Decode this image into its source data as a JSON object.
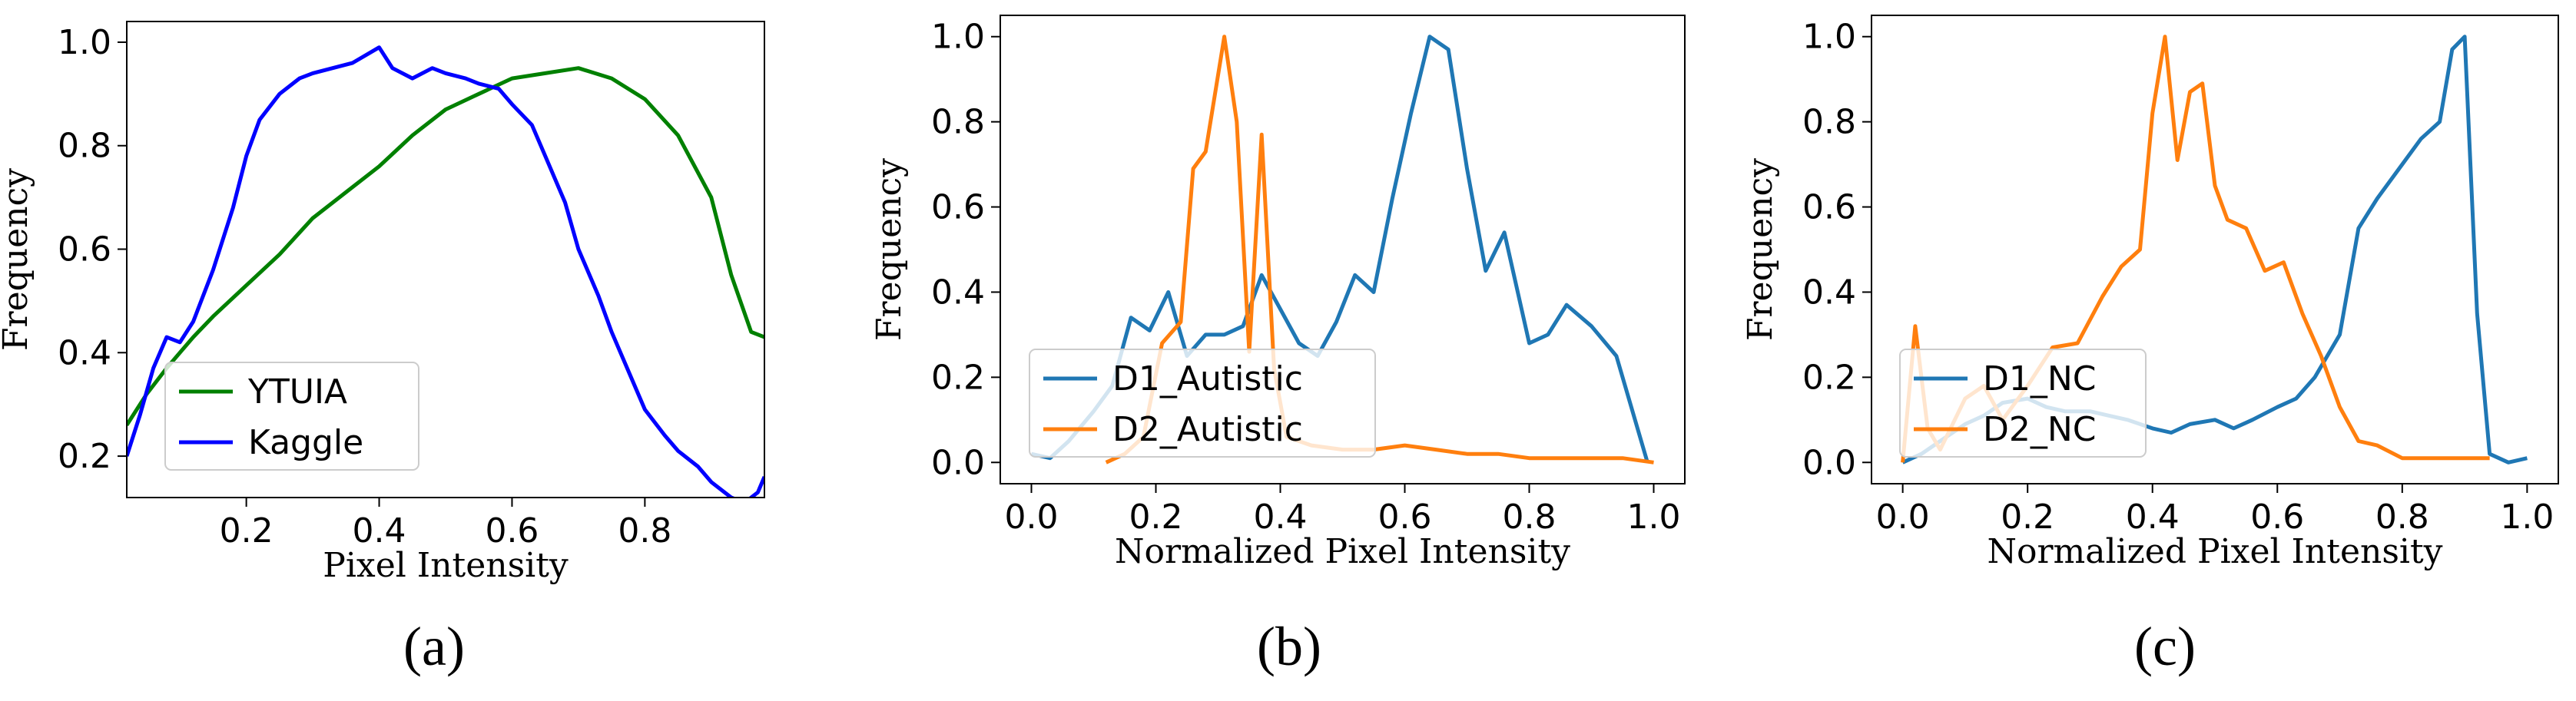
{
  "figure": {
    "captions": [
      "(a)",
      "(b)",
      "(c)"
    ]
  },
  "chart_data": [
    {
      "type": "line",
      "panel": "a",
      "title": "",
      "xlabel": "Pixel Intensity",
      "ylabel": "Frequency",
      "xlim": [
        0.02,
        0.98
      ],
      "ylim": [
        0.12,
        1.04
      ],
      "xticks": [
        0.2,
        0.4,
        0.6,
        0.8
      ],
      "xtick_labels": [
        "0.2",
        "0.4",
        "0.6",
        "0.8"
      ],
      "yticks": [
        0.2,
        0.4,
        0.6,
        0.8,
        1.0
      ],
      "ytick_labels": [
        "0.2",
        "0.4",
        "0.6",
        "0.8",
        "1.0"
      ],
      "legend_position": "lower-left",
      "series": [
        {
          "name": "YTUIA",
          "color": "#008000",
          "x": [
            0.02,
            0.05,
            0.08,
            0.1,
            0.12,
            0.15,
            0.2,
            0.25,
            0.3,
            0.35,
            0.4,
            0.45,
            0.5,
            0.55,
            0.6,
            0.65,
            0.7,
            0.75,
            0.8,
            0.85,
            0.9,
            0.93,
            0.96,
            0.98
          ],
          "values": [
            0.26,
            0.32,
            0.37,
            0.4,
            0.43,
            0.47,
            0.53,
            0.59,
            0.66,
            0.71,
            0.76,
            0.82,
            0.87,
            0.9,
            0.93,
            0.94,
            0.95,
            0.93,
            0.89,
            0.82,
            0.7,
            0.55,
            0.44,
            0.43
          ]
        },
        {
          "name": "Kaggle",
          "color": "#0000ff",
          "x": [
            0.02,
            0.04,
            0.06,
            0.08,
            0.1,
            0.12,
            0.15,
            0.18,
            0.2,
            0.22,
            0.25,
            0.28,
            0.3,
            0.33,
            0.36,
            0.4,
            0.42,
            0.45,
            0.48,
            0.5,
            0.53,
            0.55,
            0.58,
            0.6,
            0.63,
            0.65,
            0.68,
            0.7,
            0.73,
            0.75,
            0.78,
            0.8,
            0.83,
            0.85,
            0.88,
            0.9,
            0.93,
            0.95,
            0.97,
            0.98
          ],
          "values": [
            0.2,
            0.28,
            0.37,
            0.43,
            0.42,
            0.46,
            0.56,
            0.68,
            0.78,
            0.85,
            0.9,
            0.93,
            0.94,
            0.95,
            0.96,
            0.99,
            0.95,
            0.93,
            0.95,
            0.94,
            0.93,
            0.92,
            0.91,
            0.88,
            0.84,
            0.78,
            0.69,
            0.6,
            0.51,
            0.44,
            0.35,
            0.29,
            0.24,
            0.21,
            0.18,
            0.15,
            0.12,
            0.11,
            0.13,
            0.16
          ]
        }
      ]
    },
    {
      "type": "line",
      "panel": "b",
      "title": "",
      "xlabel": "Normalized Pixel Intensity",
      "ylabel": "Frequency",
      "xlim": [
        -0.05,
        1.05
      ],
      "ylim": [
        -0.05,
        1.05
      ],
      "xticks": [
        0.0,
        0.2,
        0.4,
        0.6,
        0.8,
        1.0
      ],
      "xtick_labels": [
        "0.0",
        "0.2",
        "0.4",
        "0.6",
        "0.8",
        "1.0"
      ],
      "yticks": [
        0.0,
        0.2,
        0.4,
        0.6,
        0.8,
        1.0
      ],
      "ytick_labels": [
        "0.0",
        "0.2",
        "0.4",
        "0.6",
        "0.8",
        "1.0"
      ],
      "legend_position": "lower-left",
      "series": [
        {
          "name": "D1_Autistic",
          "color": "#1f77b4",
          "x": [
            0.0,
            0.03,
            0.06,
            0.1,
            0.13,
            0.16,
            0.19,
            0.22,
            0.25,
            0.28,
            0.31,
            0.34,
            0.37,
            0.4,
            0.43,
            0.46,
            0.49,
            0.52,
            0.55,
            0.58,
            0.61,
            0.64,
            0.67,
            0.7,
            0.73,
            0.76,
            0.8,
            0.83,
            0.86,
            0.9,
            0.94,
            0.99
          ],
          "values": [
            0.02,
            0.01,
            0.05,
            0.12,
            0.18,
            0.34,
            0.31,
            0.4,
            0.25,
            0.3,
            0.3,
            0.32,
            0.44,
            0.36,
            0.28,
            0.25,
            0.33,
            0.44,
            0.4,
            0.62,
            0.82,
            1.0,
            0.97,
            0.69,
            0.45,
            0.54,
            0.28,
            0.3,
            0.37,
            0.32,
            0.25,
            0.0
          ]
        },
        {
          "name": "D2_Autistic",
          "color": "#ff7f0e",
          "x": [
            0.12,
            0.15,
            0.18,
            0.21,
            0.24,
            0.26,
            0.28,
            0.31,
            0.33,
            0.35,
            0.37,
            0.39,
            0.41,
            0.45,
            0.5,
            0.55,
            0.6,
            0.65,
            0.7,
            0.75,
            0.8,
            0.85,
            0.9,
            0.95,
            1.0
          ],
          "values": [
            0.0,
            0.02,
            0.06,
            0.28,
            0.33,
            0.69,
            0.73,
            1.0,
            0.8,
            0.26,
            0.77,
            0.22,
            0.06,
            0.04,
            0.03,
            0.03,
            0.04,
            0.03,
            0.02,
            0.02,
            0.01,
            0.01,
            0.01,
            0.01,
            0.0
          ]
        }
      ]
    },
    {
      "type": "line",
      "panel": "c",
      "title": "",
      "xlabel": "Normalized Pixel Intensity",
      "ylabel": "Frequency",
      "xlim": [
        -0.05,
        1.05
      ],
      "ylim": [
        -0.05,
        1.05
      ],
      "xticks": [
        0.0,
        0.2,
        0.4,
        0.6,
        0.8,
        1.0
      ],
      "xtick_labels": [
        "0.0",
        "0.2",
        "0.4",
        "0.6",
        "0.8",
        "1.0"
      ],
      "yticks": [
        0.0,
        0.2,
        0.4,
        0.6,
        0.8,
        1.0
      ],
      "ytick_labels": [
        "0.0",
        "0.2",
        "0.4",
        "0.6",
        "0.8",
        "1.0"
      ],
      "legend_position": "lower-left",
      "series": [
        {
          "name": "D1_NC",
          "color": "#1f77b4",
          "x": [
            0.0,
            0.03,
            0.06,
            0.1,
            0.13,
            0.16,
            0.2,
            0.23,
            0.26,
            0.3,
            0.33,
            0.36,
            0.4,
            0.43,
            0.46,
            0.5,
            0.53,
            0.56,
            0.6,
            0.63,
            0.66,
            0.7,
            0.73,
            0.76,
            0.8,
            0.83,
            0.86,
            0.88,
            0.9,
            0.92,
            0.94,
            0.97,
            1.0
          ],
          "values": [
            0.0,
            0.02,
            0.05,
            0.09,
            0.11,
            0.14,
            0.15,
            0.13,
            0.12,
            0.12,
            0.11,
            0.1,
            0.08,
            0.07,
            0.09,
            0.1,
            0.08,
            0.1,
            0.13,
            0.15,
            0.2,
            0.3,
            0.55,
            0.62,
            0.7,
            0.76,
            0.8,
            0.97,
            1.0,
            0.35,
            0.02,
            0.0,
            0.01
          ]
        },
        {
          "name": "D2_NC",
          "color": "#ff7f0e",
          "x": [
            0.0,
            0.02,
            0.04,
            0.06,
            0.1,
            0.13,
            0.16,
            0.2,
            0.24,
            0.28,
            0.32,
            0.35,
            0.38,
            0.4,
            0.42,
            0.44,
            0.46,
            0.48,
            0.5,
            0.52,
            0.55,
            0.58,
            0.61,
            0.64,
            0.67,
            0.7,
            0.73,
            0.76,
            0.8,
            0.85,
            0.9,
            0.94
          ],
          "values": [
            0.0,
            0.32,
            0.08,
            0.03,
            0.15,
            0.18,
            0.1,
            0.18,
            0.27,
            0.28,
            0.39,
            0.46,
            0.5,
            0.82,
            1.0,
            0.71,
            0.87,
            0.89,
            0.65,
            0.57,
            0.55,
            0.45,
            0.47,
            0.35,
            0.25,
            0.13,
            0.05,
            0.04,
            0.01,
            0.01,
            0.01,
            0.01
          ]
        }
      ]
    }
  ]
}
